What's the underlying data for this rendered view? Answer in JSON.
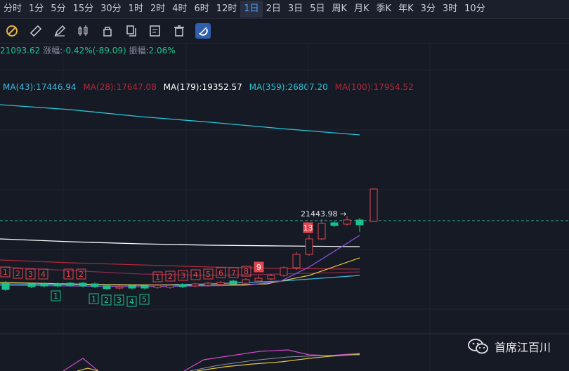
{
  "timeframes": [
    "分时",
    "1分",
    "5分",
    "15分",
    "30分",
    "1时",
    "2时",
    "4时",
    "6时",
    "12时",
    "1日",
    "2日",
    "3日",
    "5日",
    "周K",
    "月K",
    "季K",
    "年K",
    "3分",
    "3时",
    "10分"
  ],
  "active_timeframe": "1日",
  "tools": [
    {
      "name": "magnet-icon",
      "active": false
    },
    {
      "name": "ruler-icon",
      "active": false
    },
    {
      "name": "pencil-icon",
      "active": false
    },
    {
      "name": "candle-icon",
      "active": false
    },
    {
      "name": "lock-icon",
      "active": false
    },
    {
      "name": "copy-icon",
      "active": false
    },
    {
      "name": "edit-note-icon",
      "active": false
    },
    {
      "name": "trash-icon",
      "active": false
    },
    {
      "name": "magnet-active-icon",
      "active": true
    }
  ],
  "info": {
    "price": "21093.62",
    "change_label": "涨幅:",
    "change_value": "-0.42%(-89.09)",
    "amplitude_label": "振幅:",
    "amplitude_value": "2.06%"
  },
  "moving_averages": [
    {
      "label": "MA(43):17446.94",
      "color": "#3fb8e0"
    },
    {
      "label": "MA(28):17647.08",
      "color": "#b3283a"
    },
    {
      "label": "MA(179):19352.57",
      "color": "#ffffff"
    },
    {
      "label": "MA(359):26807.20",
      "color": "#29c4d8"
    },
    {
      "label": "MA(100):17954.52",
      "color": "#b3283a"
    }
  ],
  "price_marker": "21443.98 →",
  "markers_top": [
    "1",
    "2",
    "3",
    "4",
    "1",
    "2",
    "1",
    "2",
    "3",
    "4",
    "5",
    "6",
    "7",
    "8",
    "9",
    "13"
  ],
  "markers_bottom": [
    "1",
    "1",
    "2",
    "3",
    "4",
    "5"
  ],
  "watermark": "首席江百川",
  "colors": {
    "up": "#e2464e",
    "down": "#1dc08c",
    "bg": "#161a25"
  }
}
